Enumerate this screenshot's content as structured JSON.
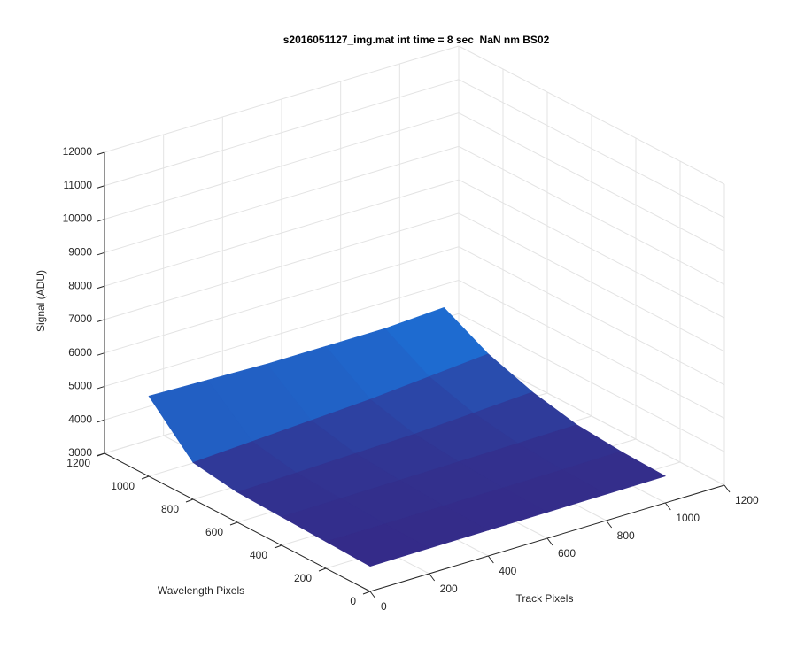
{
  "chart_data": {
    "type": "surface",
    "title": "s2016051127_img.mat int time = 8 sec  NaN nm BS02",
    "xlabel": "Track Pixels",
    "ylabel": "Wavelength Pixels",
    "zlabel": "Signal (ADU)",
    "x": [
      0,
      200,
      400,
      600,
      800,
      1000
    ],
    "y": [
      0,
      200,
      400,
      600,
      800,
      1000
    ],
    "z": [
      [
        3750,
        3760,
        3770,
        3780,
        3790,
        3800
      ],
      [
        3800,
        3800,
        3810,
        3820,
        3830,
        3850
      ],
      [
        3850,
        3870,
        3890,
        3910,
        3930,
        3960
      ],
      [
        3900,
        3950,
        4000,
        4050,
        4150,
        4250
      ],
      [
        4100,
        4200,
        4300,
        4400,
        4550,
        4700
      ],
      [
        5400,
        5350,
        5300,
        5300,
        5300,
        5400
      ]
    ],
    "xlim": [
      0,
      1200
    ],
    "xticks": [
      0,
      200,
      400,
      600,
      800,
      1000,
      1200
    ],
    "ylim": [
      0,
      1200
    ],
    "yticks": [
      0,
      200,
      400,
      600,
      800,
      1000,
      1200
    ],
    "zlim": [
      3000,
      12000
    ],
    "zticks": [
      3000,
      4000,
      5000,
      6000,
      7000,
      8000,
      9000,
      10000,
      11000,
      12000
    ],
    "grid": true
  }
}
